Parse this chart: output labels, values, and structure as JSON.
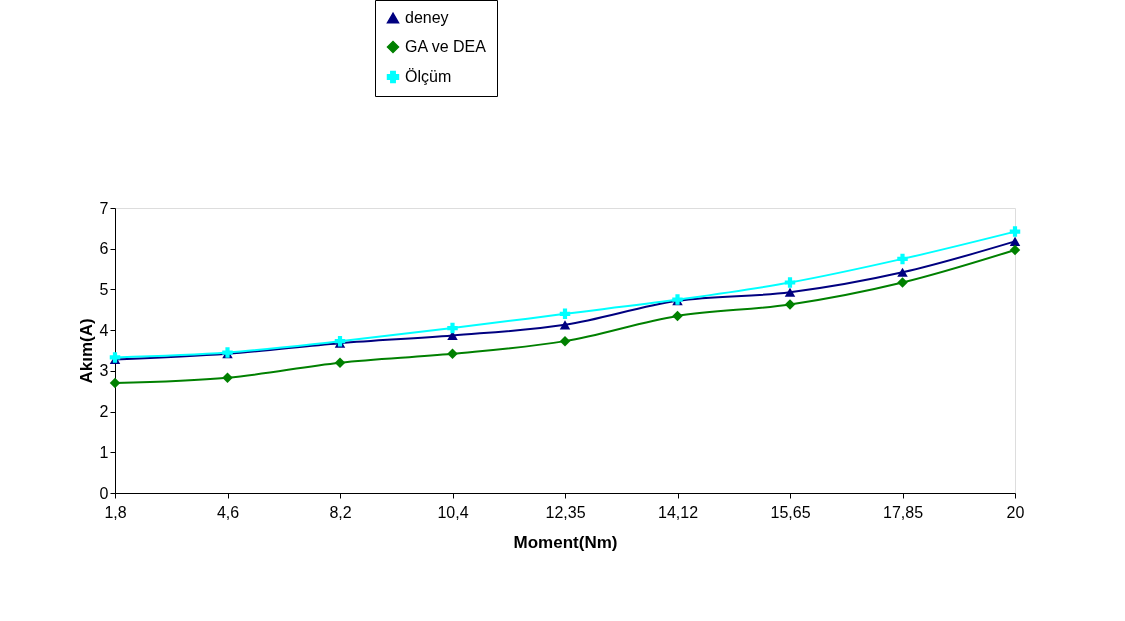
{
  "chart_data": {
    "type": "line",
    "xlabel": "Moment(Nm)",
    "ylabel": "Akım(A)",
    "categories": [
      "1,8",
      "4,6",
      "8,2",
      "10,4",
      "12,35",
      "14,12",
      "15,65",
      "17,85",
      "20"
    ],
    "series": [
      {
        "name": "deney",
        "color": "#000080",
        "marker": "triangle",
        "values": [
          3.28,
          3.42,
          3.68,
          3.87,
          4.13,
          4.72,
          4.93,
          5.42,
          6.18
        ]
      },
      {
        "name": "GA ve DEA",
        "color": "#008000",
        "marker": "diamond",
        "values": [
          2.7,
          2.83,
          3.2,
          3.42,
          3.73,
          4.35,
          4.63,
          5.17,
          5.97
        ]
      },
      {
        "name": "Ölçüm",
        "color": "#00ffff",
        "marker": "cross",
        "values": [
          3.33,
          3.45,
          3.73,
          4.05,
          4.4,
          4.75,
          5.17,
          5.75,
          6.42
        ]
      }
    ],
    "ylim": [
      0,
      7
    ],
    "yticks": [
      0,
      1,
      2,
      3,
      4,
      5,
      6,
      7
    ],
    "grid": false,
    "legend": "top",
    "line_style": "solid"
  }
}
